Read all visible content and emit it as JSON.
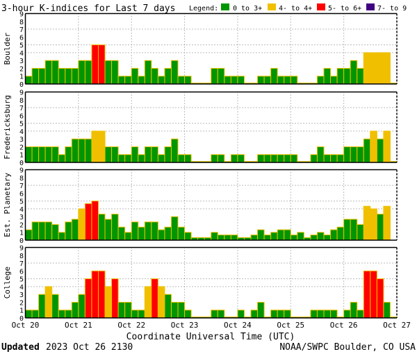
{
  "title": "3-hour K-indices for Last 7 days",
  "legend": {
    "label": "Legend:",
    "items": [
      {
        "label": "0 to 3+",
        "color": "#009600"
      },
      {
        "label": "4- to 4+",
        "color": "#f0c000"
      },
      {
        "label": "5- to 6+",
        "color": "#ff0000"
      },
      {
        "label": "7- to 9",
        "color": "#400080"
      }
    ]
  },
  "footer": {
    "updated_label": "Updated",
    "updated_value": "2023 Oct 26 2130",
    "source": "NOAA/SWPC Boulder, CO USA"
  },
  "chart_data": [
    {
      "type": "bar",
      "ylabel": "Boulder",
      "xlabel": "Coordinate Universal Time (UTC)",
      "ylim": [
        0,
        9
      ],
      "yticks": [
        "0",
        "1",
        "2",
        "3",
        "4",
        "5",
        "6",
        "7",
        "8",
        "9"
      ],
      "xticks": [
        "Oct 20",
        "Oct 21",
        "Oct 22",
        "Oct 23",
        "Oct 24",
        "Oct 25",
        "Oct 26",
        "Oct 27"
      ],
      "grid": {
        "vertical": "daily dotted",
        "horizontal": [
          4,
          5,
          7
        ]
      },
      "values": [
        1,
        2,
        2,
        3,
        3,
        2,
        2,
        2,
        3,
        3,
        5,
        5,
        3,
        3,
        1,
        1,
        2,
        1,
        3,
        2,
        1,
        2,
        3,
        1,
        1,
        0,
        0,
        0,
        2,
        2,
        1,
        1,
        1,
        0,
        0,
        1,
        1,
        2,
        1,
        1,
        1,
        0,
        0,
        0,
        1,
        2,
        1,
        2,
        2,
        3,
        2,
        4,
        4,
        4,
        4,
        0
      ]
    },
    {
      "type": "bar",
      "ylabel": "Fredericksburg",
      "ylim": [
        0,
        9
      ],
      "values": [
        2,
        2,
        2,
        2,
        2,
        1,
        2,
        3,
        3,
        3,
        4,
        4,
        2,
        2,
        1,
        1,
        2,
        1,
        2,
        2,
        1,
        2,
        3,
        1,
        1,
        0,
        0,
        0,
        1,
        1,
        0,
        1,
        1,
        0,
        0,
        1,
        1,
        1,
        1,
        1,
        1,
        0,
        0,
        1,
        2,
        1,
        1,
        1,
        2,
        2,
        2,
        3,
        4,
        3,
        4,
        0
      ]
    },
    {
      "type": "bar",
      "ylabel": "Est. Planetary",
      "ylim": [
        0,
        9
      ],
      "values": [
        1.33,
        2.33,
        2.33,
        2.33,
        2,
        1,
        2.33,
        2.67,
        4,
        4.67,
        5,
        3.33,
        2.67,
        3.33,
        1.67,
        1,
        2.33,
        1.67,
        2.33,
        2.33,
        1.33,
        1.67,
        3,
        1.67,
        1,
        0.33,
        0.33,
        0.33,
        1,
        0.67,
        0.67,
        0.67,
        0.33,
        0.33,
        0.67,
        1.33,
        0.67,
        1,
        1.33,
        1.33,
        0.67,
        1,
        0.33,
        0.67,
        1,
        0.67,
        1.33,
        1.67,
        2.67,
        2.67,
        2,
        4.33,
        4,
        3.33,
        4.33,
        null
      ]
    },
    {
      "type": "bar",
      "ylabel": "College",
      "ylim": [
        0,
        9
      ],
      "values": [
        1,
        1,
        3,
        4,
        3,
        1,
        1,
        2,
        3,
        5,
        6,
        6,
        4,
        5,
        2,
        2,
        1,
        1,
        4,
        5,
        4,
        3,
        2,
        2,
        1,
        0,
        0,
        0,
        1,
        1,
        0,
        0,
        1,
        0,
        1,
        2,
        0,
        1,
        1,
        1,
        0,
        0,
        0,
        1,
        1,
        1,
        1,
        0,
        1,
        2,
        1,
        6,
        6,
        5,
        2,
        0
      ]
    }
  ]
}
